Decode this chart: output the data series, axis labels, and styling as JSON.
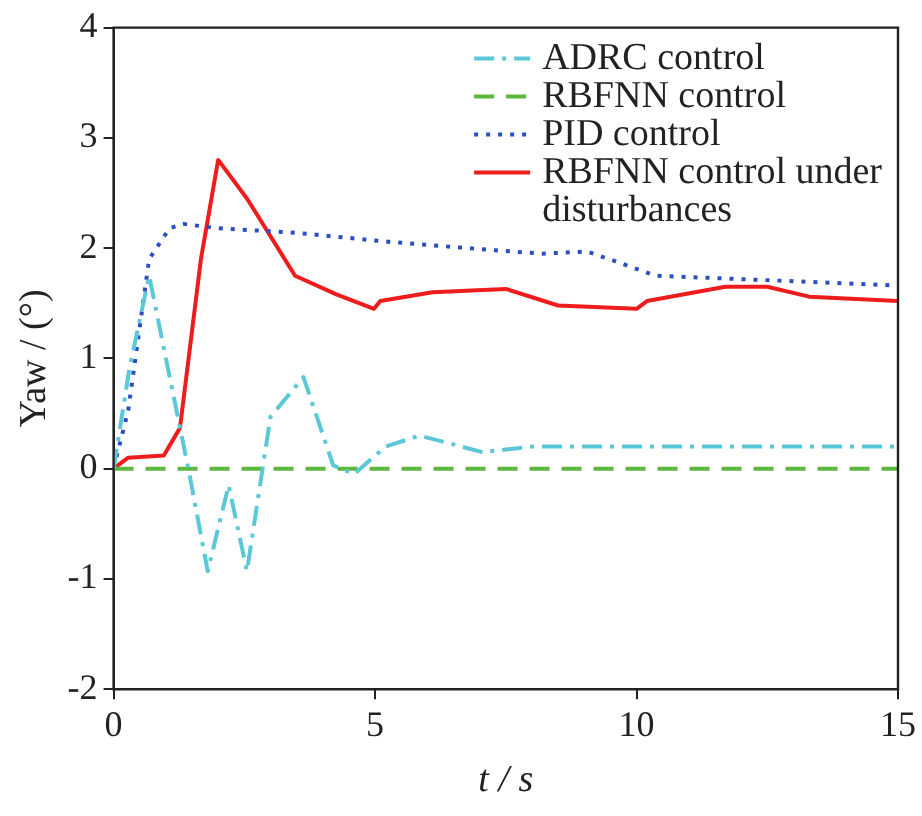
{
  "chart_data": {
    "type": "line",
    "xlabel": "t / s",
    "ylabel": "Yaw / (°)",
    "xlim": [
      0,
      15
    ],
    "xticks": [
      0,
      5,
      10,
      15
    ],
    "ylim": [
      -2,
      4
    ],
    "yticks": [
      -2,
      -1,
      0,
      1,
      2,
      3,
      4
    ],
    "grid": false,
    "legend": "top right",
    "marker": "none",
    "series": [
      {
        "name": "ADRC control",
        "color": "#5bc8d8",
        "line_style": "dashdot",
        "x": [
          0,
          0.3,
          0.68,
          1.0,
          1.43,
          1.8,
          2.2,
          2.55,
          3.0,
          3.63,
          4.2,
          4.6,
          5.2,
          5.85,
          6.5,
          7.05,
          8,
          10,
          12,
          15
        ],
        "values": [
          0,
          0.9,
          1.75,
          1.0,
          0,
          -0.93,
          -0.15,
          -0.93,
          0.47,
          0.83,
          0.03,
          -0.05,
          0.2,
          0.3,
          0.22,
          0.15,
          0.2,
          0.2,
          0.2,
          0.2
        ]
      },
      {
        "name": "RBFNN control",
        "color": "#5cb83c",
        "line_style": "dashed",
        "x": [
          0,
          15
        ],
        "values": [
          0,
          0
        ]
      },
      {
        "name": "PID control",
        "color": "#2b4fc2",
        "line_style": "dotted",
        "x": [
          0,
          0.28,
          0.68,
          1.07,
          1.33,
          2.0,
          3.47,
          5.2,
          7.3,
          8.2,
          9.05,
          9.6,
          10.36,
          11.95,
          15
        ],
        "values": [
          0,
          0.53,
          1.9,
          2.18,
          2.22,
          2.18,
          2.14,
          2.06,
          1.98,
          1.95,
          1.97,
          1.88,
          1.75,
          1.72,
          1.66
        ]
      },
      {
        "name": "RBFNN control under disturbances",
        "color": "#ee1c1c",
        "line_style": "solid",
        "x": [
          0,
          0.28,
          0.96,
          1.27,
          1.67,
          2.0,
          2.55,
          3.47,
          4.26,
          4.98,
          5.1,
          6.1,
          7.5,
          8.5,
          10.0,
          10.2,
          11.7,
          12.5,
          13.3,
          15
        ],
        "values": [
          0,
          0.1,
          0.12,
          0.37,
          1.9,
          2.8,
          2.45,
          1.75,
          1.58,
          1.45,
          1.52,
          1.6,
          1.63,
          1.48,
          1.45,
          1.52,
          1.65,
          1.65,
          1.56,
          1.52
        ]
      }
    ]
  }
}
